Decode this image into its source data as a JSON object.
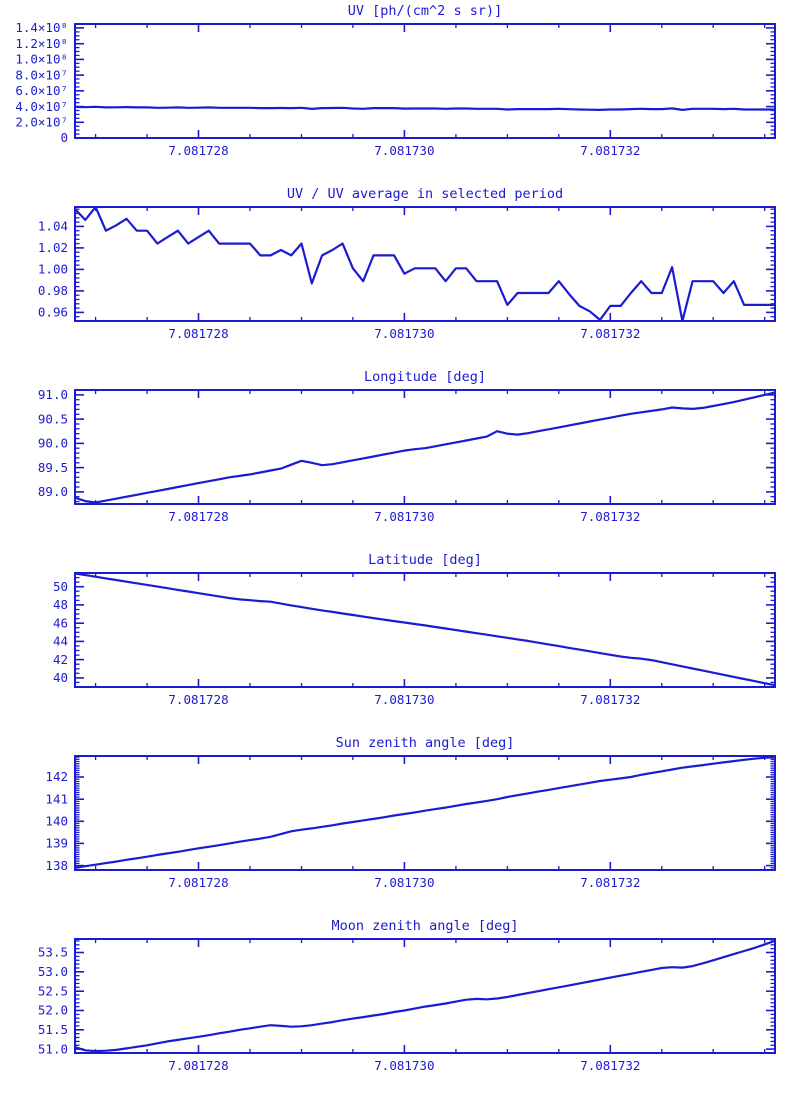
{
  "page": {
    "background": "#ffffff",
    "accent": "#1b1bd1"
  },
  "x_axis": {
    "start": 7.0817268,
    "step": 1e-07,
    "points": 69,
    "lim": [
      7.0817268,
      7.0817336
    ],
    "ticks": [
      7.081728,
      7.08173,
      7.081732
    ],
    "tick_labels": [
      "7.081728",
      "7.081730",
      "7.081732"
    ],
    "minor_step": 5e-07
  },
  "chart_data": [
    {
      "type": "line",
      "title": "UV [ph/(cm^2 s sr)]",
      "xlabel": "",
      "ylabel": "",
      "ylim": [
        0,
        145000000.0
      ],
      "yticks": [
        0,
        20000000.0,
        40000000.0,
        60000000.0,
        80000000.0,
        100000000.0,
        120000000.0,
        140000000.0
      ],
      "ytick_labels": [
        "0",
        "2.0×10⁷",
        "4.0×10⁷",
        "6.0×10⁷",
        "8.0×10⁷",
        "1.0×10⁸",
        "1.2×10⁸",
        "1.4×10⁸"
      ],
      "yminor": 3,
      "grid": false,
      "y": [
        39600000.0,
        39200000.0,
        39700000.0,
        38900000.0,
        39000000.0,
        39300000.0,
        38900000.0,
        38900000.0,
        38400000.0,
        38600000.0,
        38900000.0,
        38400000.0,
        38600000.0,
        38900000.0,
        38400000.0,
        38400000.0,
        38400000.0,
        38400000.0,
        38000000.0,
        38000000.0,
        38200000.0,
        38000000.0,
        38400000.0,
        37000000.0,
        38000000.0,
        38200000.0,
        38400000.0,
        37500000.0,
        37100000.0,
        38000000.0,
        38000000.0,
        38000000.0,
        37400000.0,
        37500000.0,
        37500000.0,
        37500000.0,
        37100000.0,
        37500000.0,
        37500000.0,
        37100000.0,
        37100000.0,
        37100000.0,
        36300000.0,
        36700000.0,
        36700000.0,
        36700000.0,
        36700000.0,
        37100000.0,
        36600000.0,
        36200000.0,
        36000000.0,
        35700000.0,
        36200000.0,
        36200000.0,
        36700000.0,
        37100000.0,
        36700000.0,
        36700000.0,
        37600000.0,
        35700000.0,
        37100000.0,
        37100000.0,
        37100000.0,
        36700000.0,
        37100000.0,
        36300000.0,
        36300000.0,
        36300000.0,
        36300000.0
      ]
    },
    {
      "type": "line",
      "title": "UV / UV average in selected period",
      "xlabel": "",
      "ylabel": "",
      "ylim": [
        0.952,
        1.058
      ],
      "yticks": [
        0.96,
        0.98,
        1.0,
        1.02,
        1.04
      ],
      "ytick_labels": [
        "0.96",
        "0.98",
        "1.00",
        "1.02",
        "1.04"
      ],
      "yminor": 4,
      "grid": false,
      "y": [
        1.056,
        1.046,
        1.058,
        1.036,
        1.041,
        1.047,
        1.036,
        1.036,
        1.024,
        1.03,
        1.036,
        1.024,
        1.03,
        1.036,
        1.024,
        1.024,
        1.024,
        1.024,
        1.013,
        1.013,
        1.018,
        1.013,
        1.024,
        0.987,
        1.013,
        1.018,
        1.024,
        1.001,
        0.989,
        1.013,
        1.013,
        1.013,
        0.996,
        1.001,
        1.001,
        1.001,
        0.989,
        1.001,
        1.001,
        0.989,
        0.989,
        0.989,
        0.967,
        0.978,
        0.978,
        0.978,
        0.978,
        0.989,
        0.977,
        0.966,
        0.961,
        0.953,
        0.966,
        0.966,
        0.978,
        0.989,
        0.978,
        0.978,
        1.002,
        0.952,
        0.989,
        0.989,
        0.989,
        0.978,
        0.989,
        0.967,
        0.967,
        0.967,
        0.967
      ]
    },
    {
      "type": "line",
      "title": "Longitude [deg]",
      "xlabel": "",
      "ylabel": "",
      "ylim": [
        88.75,
        91.1
      ],
      "yticks": [
        89.0,
        89.5,
        90.0,
        90.5,
        91.0
      ],
      "ytick_labels": [
        "89.0",
        "89.5",
        "90.0",
        "90.5",
        "91.0"
      ],
      "yminor": 4,
      "grid": false,
      "y": [
        88.88,
        88.81,
        88.78,
        88.82,
        88.86,
        88.9,
        88.94,
        88.98,
        89.02,
        89.06,
        89.1,
        89.14,
        89.18,
        89.22,
        89.26,
        89.3,
        89.33,
        89.36,
        89.4,
        89.44,
        89.48,
        89.56,
        89.64,
        89.6,
        89.55,
        89.57,
        89.61,
        89.65,
        89.69,
        89.73,
        89.77,
        89.81,
        89.85,
        89.88,
        89.9,
        89.94,
        89.98,
        90.02,
        90.06,
        90.1,
        90.14,
        90.25,
        90.2,
        90.18,
        90.21,
        90.25,
        90.29,
        90.33,
        90.37,
        90.41,
        90.45,
        90.49,
        90.53,
        90.57,
        90.61,
        90.64,
        90.67,
        90.7,
        90.74,
        90.72,
        90.71,
        90.73,
        90.77,
        90.81,
        90.85,
        90.9,
        90.95,
        91.0,
        91.05
      ]
    },
    {
      "type": "line",
      "title": "Latitude [deg]",
      "xlabel": "",
      "ylabel": "",
      "ylim": [
        39.0,
        51.5
      ],
      "yticks": [
        40,
        42,
        44,
        46,
        48,
        50
      ],
      "ytick_labels": [
        "40",
        "42",
        "44",
        "46",
        "48",
        "50"
      ],
      "yminor": 3,
      "grid": false,
      "y": [
        51.45,
        51.27,
        51.09,
        50.91,
        50.73,
        50.55,
        50.37,
        50.19,
        50.01,
        49.83,
        49.65,
        49.47,
        49.29,
        49.11,
        48.93,
        48.75,
        48.6,
        48.52,
        48.42,
        48.35,
        48.15,
        47.95,
        47.76,
        47.58,
        47.4,
        47.23,
        47.06,
        46.89,
        46.72,
        46.55,
        46.39,
        46.23,
        46.07,
        45.91,
        45.75,
        45.58,
        45.41,
        45.24,
        45.07,
        44.9,
        44.73,
        44.56,
        44.39,
        44.22,
        44.05,
        43.86,
        43.67,
        43.48,
        43.29,
        43.1,
        42.91,
        42.72,
        42.53,
        42.34,
        42.2,
        42.1,
        41.95,
        41.72,
        41.49,
        41.26,
        41.03,
        40.8,
        40.57,
        40.34,
        40.11,
        39.88,
        39.65,
        39.42,
        39.2
      ]
    },
    {
      "type": "line",
      "title": "Sun zenith angle [deg]",
      "xlabel": "",
      "ylabel": "",
      "ylim": [
        137.8,
        142.95
      ],
      "yticks": [
        138,
        139,
        140,
        141,
        142
      ],
      "ytick_labels": [
        "138",
        "139",
        "140",
        "141",
        "142"
      ],
      "yminor": 9,
      "grid": false,
      "y": [
        137.9,
        137.97,
        138.04,
        138.11,
        138.18,
        138.26,
        138.33,
        138.4,
        138.48,
        138.55,
        138.62,
        138.7,
        138.78,
        138.85,
        138.92,
        139.0,
        139.08,
        139.15,
        139.22,
        139.3,
        139.42,
        139.55,
        139.62,
        139.68,
        139.75,
        139.82,
        139.9,
        139.97,
        140.04,
        140.11,
        140.18,
        140.26,
        140.33,
        140.4,
        140.48,
        140.55,
        140.62,
        140.7,
        140.78,
        140.85,
        140.92,
        141.0,
        141.1,
        141.18,
        141.26,
        141.34,
        141.42,
        141.5,
        141.58,
        141.66,
        141.74,
        141.82,
        141.88,
        141.94,
        142.0,
        142.1,
        142.18,
        142.26,
        142.34,
        142.42,
        142.48,
        142.54,
        142.6,
        142.66,
        142.72,
        142.78,
        142.83,
        142.87,
        142.9
      ]
    },
    {
      "type": "line",
      "title": "Moon zenith angle [deg]",
      "xlabel": "",
      "ylabel": "",
      "ylim": [
        50.9,
        53.85
      ],
      "yticks": [
        51.0,
        51.5,
        52.0,
        52.5,
        53.0,
        53.5
      ],
      "ytick_labels": [
        "51.0",
        "51.5",
        "52.0",
        "52.5",
        "53.0",
        "53.5"
      ],
      "yminor": 4,
      "grid": false,
      "y": [
        51.05,
        50.97,
        50.95,
        50.96,
        50.98,
        51.02,
        51.06,
        51.1,
        51.15,
        51.2,
        51.24,
        51.28,
        51.32,
        51.36,
        51.41,
        51.45,
        51.5,
        51.54,
        51.58,
        51.62,
        51.6,
        51.58,
        51.59,
        51.62,
        51.66,
        51.7,
        51.75,
        51.79,
        51.83,
        51.87,
        51.91,
        51.96,
        52.0,
        52.05,
        52.1,
        52.14,
        52.18,
        52.23,
        52.28,
        52.3,
        52.29,
        52.31,
        52.35,
        52.4,
        52.45,
        52.5,
        52.55,
        52.6,
        52.65,
        52.7,
        52.75,
        52.8,
        52.85,
        52.9,
        52.95,
        53.0,
        53.05,
        53.1,
        53.12,
        53.11,
        53.15,
        53.22,
        53.3,
        53.38,
        53.46,
        53.54,
        53.62,
        53.71,
        53.8
      ]
    }
  ]
}
